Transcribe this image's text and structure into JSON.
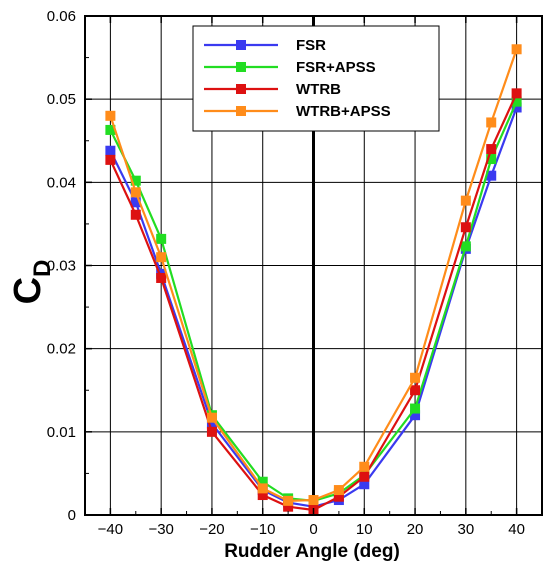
{
  "chart_data": {
    "type": "line",
    "xlabel": "Rudder Angle (deg)",
    "ylabel": "C",
    "ylabel_subscript": "D",
    "xlim": [
      -45,
      45
    ],
    "ylim": [
      0,
      0.06
    ],
    "xticks": [
      -40,
      -30,
      -20,
      -10,
      0,
      10,
      20,
      30,
      40
    ],
    "xtick_labels": [
      "−40",
      "−30",
      "−20",
      "−10",
      "0",
      "10",
      "20",
      "30",
      "40"
    ],
    "yticks": [
      0,
      0.01,
      0.02,
      0.03,
      0.04,
      0.05,
      0.06
    ],
    "ytick_labels": [
      "0",
      "0.01",
      "0.02",
      "0.03",
      "0.04",
      "0.05",
      "0.06"
    ],
    "grid": true,
    "legend_position": "top-center",
    "x": [
      -40,
      -35,
      -30,
      -20,
      -10,
      -5,
      0,
      5,
      10,
      20,
      30,
      35,
      40
    ],
    "series": [
      {
        "name": "FSR",
        "color": "#3a3af0",
        "values": [
          0.0438,
          0.0376,
          0.029,
          0.011,
          0.003,
          0.0015,
          0.001,
          0.0018,
          0.0037,
          0.012,
          0.032,
          0.0408,
          0.049
        ]
      },
      {
        "name": "FSR+APSS",
        "color": "#22dd22",
        "values": [
          0.0463,
          0.0402,
          0.0332,
          0.012,
          0.004,
          0.002,
          0.0017,
          0.0026,
          0.0048,
          0.0128,
          0.0323,
          0.0428,
          0.0497
        ]
      },
      {
        "name": "WTRB",
        "color": "#dd1111",
        "values": [
          0.0427,
          0.0361,
          0.0285,
          0.01,
          0.0024,
          0.001,
          0.0006,
          0.0022,
          0.0046,
          0.015,
          0.0346,
          0.044,
          0.0507
        ]
      },
      {
        "name": "WTRB+APSS",
        "color": "#ff8c1a",
        "values": [
          0.048,
          0.0388,
          0.031,
          0.0117,
          0.0032,
          0.0017,
          0.0018,
          0.003,
          0.0058,
          0.0165,
          0.0378,
          0.0472,
          0.056
        ]
      }
    ]
  }
}
